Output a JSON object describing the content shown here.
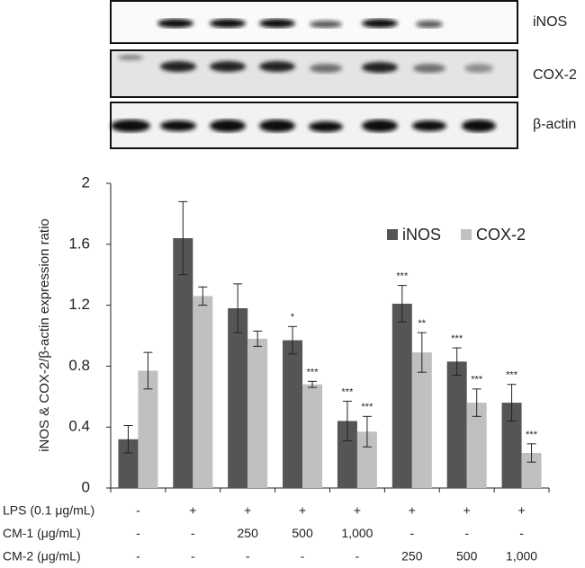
{
  "blot": {
    "labels": [
      "iNOS",
      "COX-2",
      "β-actin"
    ]
  },
  "chart_data": {
    "type": "bar",
    "y_label": "iNOS & COX-2/β-actin expression ratio",
    "ylim": [
      0,
      2
    ],
    "yticks": [
      0,
      0.4,
      0.8,
      1.2,
      1.6,
      2
    ],
    "legend": "upper right",
    "series": [
      {
        "name": "iNOS",
        "color": "#555555",
        "values": [
          0.32,
          1.64,
          1.18,
          0.97,
          0.44,
          1.21,
          0.83,
          0.56
        ],
        "errors": [
          0.09,
          0.24,
          0.16,
          0.09,
          0.13,
          0.12,
          0.09,
          0.12
        ],
        "annotations": [
          null,
          null,
          null,
          "*",
          "***",
          "***",
          "***",
          "***"
        ]
      },
      {
        "name": "COX-2",
        "color": "#c0c0c0",
        "values": [
          0.77,
          1.26,
          0.98,
          0.68,
          0.37,
          0.89,
          0.56,
          0.23
        ],
        "errors": [
          0.12,
          0.06,
          0.05,
          0.02,
          0.1,
          0.13,
          0.09,
          0.06
        ],
        "annotations": [
          null,
          null,
          null,
          "***",
          "***",
          "**",
          "***",
          "***"
        ]
      }
    ],
    "treatment_table": [
      {
        "label": "LPS (0.1 μg/mL)",
        "values": [
          "-",
          "+",
          "+",
          "+",
          "+",
          "+",
          "+",
          "+"
        ]
      },
      {
        "label": "CM-1 (μg/mL)",
        "values": [
          "-",
          "-",
          "250",
          "500",
          "1,000",
          "-",
          "-",
          "-"
        ]
      },
      {
        "label": "CM-2 (μg/mL)",
        "values": [
          "-",
          "-",
          "-",
          "-",
          "-",
          "250",
          "500",
          "1,000"
        ]
      }
    ]
  }
}
